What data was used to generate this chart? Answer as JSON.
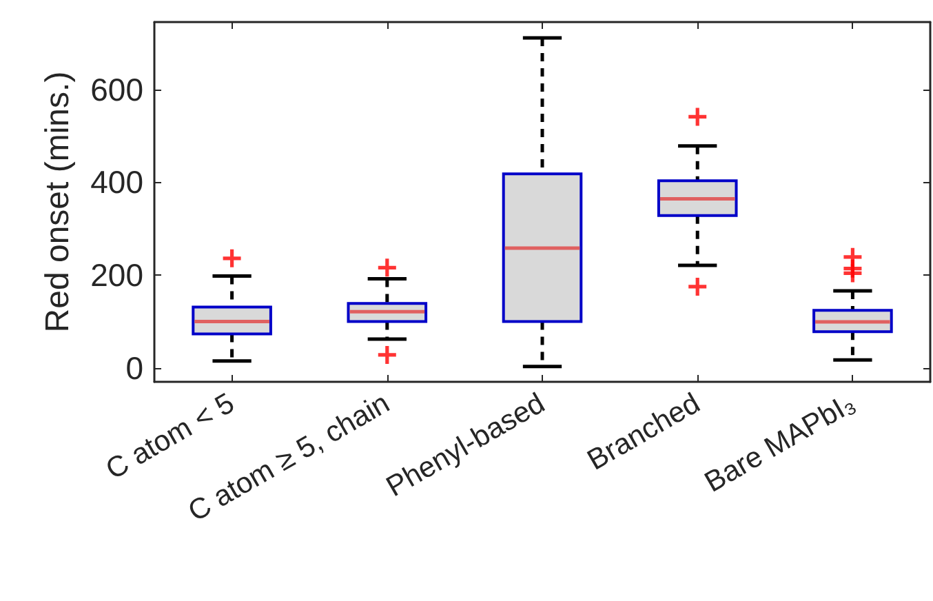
{
  "chart_data": {
    "type": "box",
    "ylabel": "Red onset (mins.)",
    "categories": [
      "C atom < 5",
      "C atom ≥ 5, chain",
      "Phenyl-based",
      "Branched",
      "Bare MAPbI₃"
    ],
    "boxes": [
      {
        "low": 15,
        "q1": 73,
        "median": 100,
        "q3": 131,
        "high": 198,
        "outliers": [
          236
        ]
      },
      {
        "low": 62,
        "q1": 100,
        "median": 121,
        "q3": 139,
        "high": 192,
        "outliers": [
          216,
          28
        ]
      },
      {
        "low": 3,
        "q1": 100,
        "median": 258,
        "q3": 418,
        "high": 711
      },
      {
        "low": 221,
        "q1": 328,
        "median": 364,
        "q3": 403,
        "high": 478,
        "outliers": [
          541,
          175
        ]
      },
      {
        "low": 17,
        "q1": 78,
        "median": 99,
        "q3": 124,
        "high": 166,
        "outliers": [
          239,
          214,
          204
        ]
      }
    ],
    "color": "#d9d9d9",
    "ylim": [
      -30,
      745
    ],
    "yticks": [
      0,
      200,
      400,
      600
    ],
    "grid": false,
    "marker": "cross",
    "line_style": "dashed"
  }
}
